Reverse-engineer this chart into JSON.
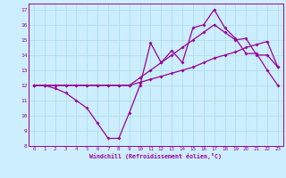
{
  "xlabel": "Windchill (Refroidissement éolien,°C)",
  "bg_color": "#cceeff",
  "grid_color": "#aadddd",
  "line_color": "#990099",
  "xlim": [
    -0.5,
    23.5
  ],
  "ylim": [
    8,
    17.4
  ],
  "xticks": [
    0,
    1,
    2,
    3,
    4,
    5,
    6,
    7,
    8,
    9,
    10,
    11,
    12,
    13,
    14,
    15,
    16,
    17,
    18,
    19,
    20,
    21,
    22,
    23
  ],
  "yticks": [
    8,
    9,
    10,
    11,
    12,
    13,
    14,
    15,
    16,
    17
  ],
  "line1_x": [
    0,
    1,
    2,
    3,
    4,
    5,
    6,
    7,
    8,
    9,
    10,
    11,
    12,
    13,
    14,
    15,
    16,
    17,
    18,
    19,
    20,
    21,
    22,
    23
  ],
  "line1_y": [
    12,
    12,
    11.8,
    11.5,
    11.0,
    10.5,
    9.5,
    8.5,
    8.5,
    10.2,
    12.0,
    14.8,
    13.5,
    14.3,
    13.5,
    15.8,
    16.0,
    17.0,
    15.8,
    15.1,
    14.1,
    14.1,
    13.0,
    12.0
  ],
  "line2_x": [
    0,
    1,
    2,
    3,
    4,
    5,
    6,
    7,
    8,
    9,
    10,
    11,
    12,
    13,
    14,
    15,
    16,
    17,
    18,
    19,
    20,
    21,
    22,
    23
  ],
  "line2_y": [
    12,
    12,
    12,
    12,
    12,
    12,
    12,
    12,
    12,
    12,
    12.2,
    12.4,
    12.6,
    12.8,
    13.0,
    13.2,
    13.5,
    13.8,
    14.0,
    14.2,
    14.5,
    14.7,
    14.9,
    13.2
  ],
  "line3_x": [
    0,
    1,
    2,
    3,
    4,
    5,
    6,
    7,
    8,
    9,
    10,
    11,
    12,
    13,
    14,
    15,
    16,
    17,
    18,
    19,
    20,
    21,
    22,
    23
  ],
  "line3_y": [
    12,
    12,
    12,
    12,
    12,
    12,
    12,
    12,
    12,
    12,
    12.5,
    13.0,
    13.5,
    14.0,
    14.5,
    15.0,
    15.5,
    16.0,
    15.5,
    15.0,
    15.1,
    14.0,
    14.0,
    13.2
  ]
}
